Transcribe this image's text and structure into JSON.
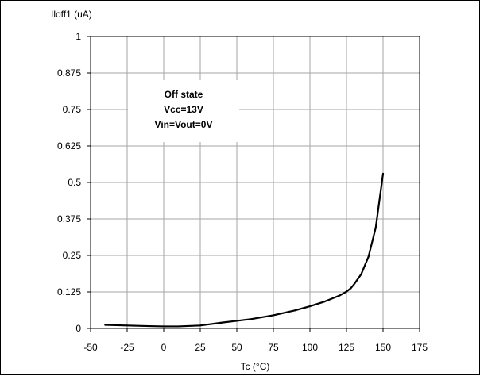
{
  "chart_data": {
    "type": "line",
    "title": "",
    "ylabel": "Iloff1 (uA)",
    "xlabel": "Tc (°C)",
    "xlim": [
      -50,
      175
    ],
    "ylim": [
      0,
      1
    ],
    "xticks": [
      -50,
      -25,
      0,
      25,
      50,
      75,
      100,
      125,
      150,
      175
    ],
    "yticks": [
      0,
      0.125,
      0.25,
      0.375,
      0.5,
      0.625,
      0.75,
      0.875,
      1
    ],
    "ytick_labels": [
      "0",
      "0.125",
      "0.25",
      "0.375",
      "0.5",
      "0.625",
      "0.75",
      "0.875",
      "1"
    ],
    "grid": true,
    "annotation": {
      "lines": [
        "Off state",
        "Vcc=13V",
        "Vin=Vout=0V"
      ]
    },
    "series": [
      {
        "name": "",
        "color": "#000000",
        "x": [
          -40,
          -25,
          -10,
          0,
          10,
          25,
          40,
          50,
          60,
          75,
          90,
          100,
          110,
          120,
          125,
          128,
          130,
          135,
          140,
          145,
          150
        ],
        "y": [
          0.012,
          0.01,
          0.008,
          0.007,
          0.007,
          0.01,
          0.02,
          0.026,
          0.032,
          0.045,
          0.062,
          0.076,
          0.092,
          0.112,
          0.126,
          0.138,
          0.15,
          0.185,
          0.245,
          0.345,
          0.53
        ]
      }
    ]
  }
}
